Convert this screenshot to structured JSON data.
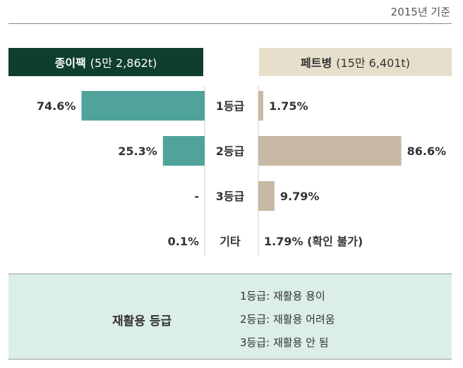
{
  "note": "2015년 기준",
  "headers": {
    "paper": {
      "name": "종이팩",
      "amount": "(5만 2,862t)"
    },
    "pet": {
      "name": "페트병",
      "amount": "(15만 6,401t)"
    }
  },
  "chart_data": {
    "type": "bar",
    "categories": [
      "1등급",
      "2등급",
      "3등급",
      "기타"
    ],
    "series": [
      {
        "name": "종이팩",
        "values": [
          74.6,
          25.3,
          null,
          0.1
        ],
        "labels": [
          "74.6%",
          "25.3%",
          "-",
          "0.1%"
        ]
      },
      {
        "name": "페트병",
        "values": [
          1.75,
          86.6,
          9.79,
          1.79
        ],
        "labels": [
          "1.75%",
          "86.6%",
          "9.79%",
          "1.79% (확인 불가)"
        ]
      }
    ],
    "colors": {
      "paper": "#4fa39b",
      "pet": "#c7b9a3"
    }
  },
  "legend": {
    "title": "재활용 등급",
    "items": [
      "1등급: 재활용 용이",
      "2등급: 재활용 어려움",
      "3등급: 재활용 안 됨"
    ]
  }
}
